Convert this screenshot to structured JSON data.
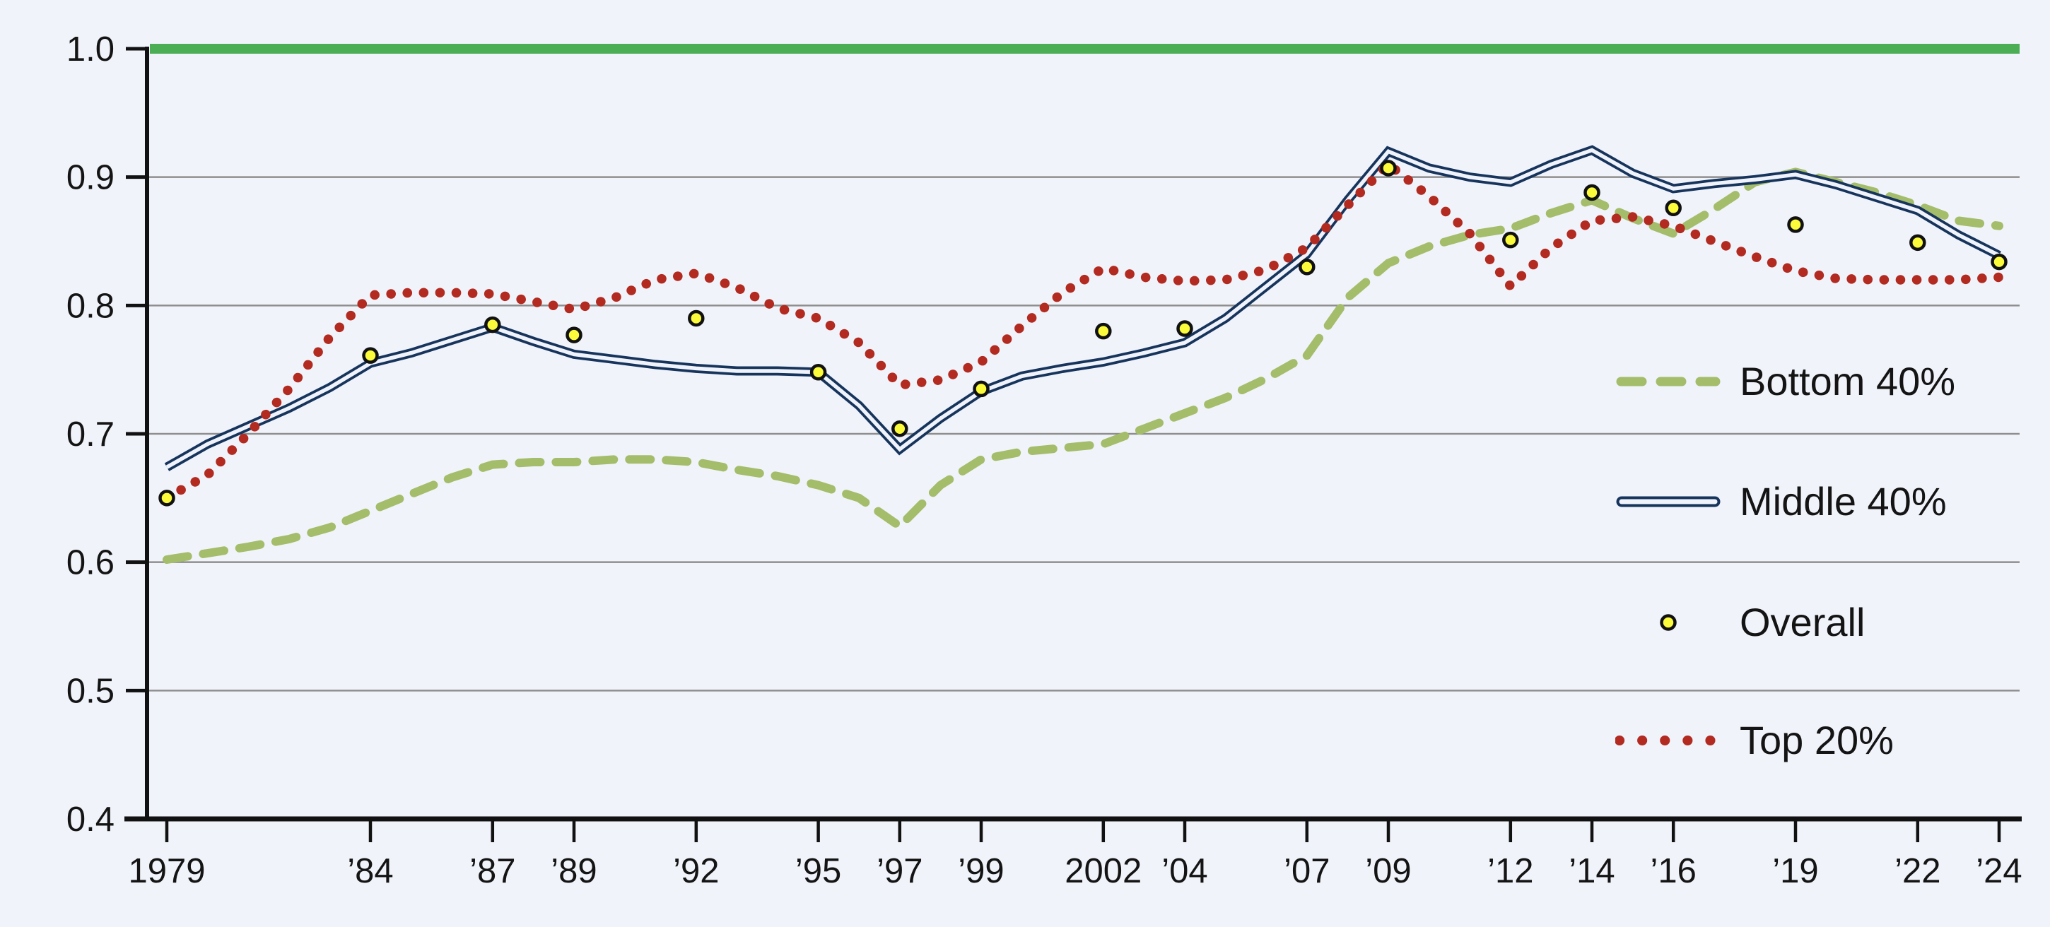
{
  "chart_data": {
    "type": "line",
    "title": "",
    "x_axis": {
      "min": 1979,
      "max": 2024,
      "tick_labels": [
        {
          "year": 1979,
          "label": "1979"
        },
        {
          "year": 1984,
          "label": "’84"
        },
        {
          "year": 1987,
          "label": "’87"
        },
        {
          "year": 1989,
          "label": "’89"
        },
        {
          "year": 1992,
          "label": "’92"
        },
        {
          "year": 1995,
          "label": "’95"
        },
        {
          "year": 1997,
          "label": "’97"
        },
        {
          "year": 1999,
          "label": "’99"
        },
        {
          "year": 2002,
          "label": "2002"
        },
        {
          "year": 2004,
          "label": "’04"
        },
        {
          "year": 2007,
          "label": "’07"
        },
        {
          "year": 2009,
          "label": "’09"
        },
        {
          "year": 2012,
          "label": "’12"
        },
        {
          "year": 2014,
          "label": "’14"
        },
        {
          "year": 2016,
          "label": "’16"
        },
        {
          "year": 2019,
          "label": "’19"
        },
        {
          "year": 2022,
          "label": "’22"
        },
        {
          "year": 2024,
          "label": "’24"
        }
      ]
    },
    "y_axis": {
      "min": 0.4,
      "max": 1.0,
      "ticks": [
        {
          "value": 1.0,
          "label": "1.0"
        },
        {
          "value": 0.9,
          "label": "0.9"
        },
        {
          "value": 0.8,
          "label": "0.8"
        },
        {
          "value": 0.7,
          "label": "0.7"
        },
        {
          "value": 0.6,
          "label": "0.6"
        },
        {
          "value": 0.5,
          "label": "0.5"
        },
        {
          "value": 0.4,
          "label": "0.4"
        }
      ],
      "gridlines": [
        0.5,
        0.6,
        0.7,
        0.8,
        0.9
      ],
      "grid_on": true
    },
    "reference_line": {
      "value": 1.0,
      "color": "#4bae55"
    },
    "legend": {
      "position": "right-inside",
      "items": [
        {
          "label": "Bottom 40%",
          "style": "dashed",
          "color": "#a4bd6a"
        },
        {
          "label": "Middle 40%",
          "style": "double-line",
          "color": "#16345c"
        },
        {
          "label": "Overall",
          "style": "scatter",
          "color": "#fbfb3c"
        },
        {
          "label": "Top 20%",
          "style": "dotted",
          "color": "#b22a20"
        }
      ]
    },
    "series": [
      {
        "name": "Bottom 40%",
        "style": "dashed",
        "color": "#a4bd6a",
        "points": [
          [
            1979,
            0.602
          ],
          [
            1980,
            0.607
          ],
          [
            1981,
            0.612
          ],
          [
            1982,
            0.618
          ],
          [
            1983,
            0.627
          ],
          [
            1984,
            0.64
          ],
          [
            1985,
            0.653
          ],
          [
            1986,
            0.666
          ],
          [
            1987,
            0.676
          ],
          [
            1988,
            0.678
          ],
          [
            1989,
            0.678
          ],
          [
            1990,
            0.68
          ],
          [
            1991,
            0.68
          ],
          [
            1992,
            0.678
          ],
          [
            1993,
            0.672
          ],
          [
            1994,
            0.667
          ],
          [
            1995,
            0.66
          ],
          [
            1996,
            0.65
          ],
          [
            1997,
            0.628
          ],
          [
            1998,
            0.66
          ],
          [
            1999,
            0.68
          ],
          [
            2000,
            0.686
          ],
          [
            2001,
            0.689
          ],
          [
            2002,
            0.692
          ],
          [
            2003,
            0.704
          ],
          [
            2004,
            0.716
          ],
          [
            2005,
            0.728
          ],
          [
            2006,
            0.743
          ],
          [
            2007,
            0.761
          ],
          [
            2008,
            0.806
          ],
          [
            2009,
            0.833
          ],
          [
            2010,
            0.846
          ],
          [
            2011,
            0.855
          ],
          [
            2012,
            0.86
          ],
          [
            2013,
            0.872
          ],
          [
            2014,
            0.882
          ],
          [
            2015,
            0.868
          ],
          [
            2016,
            0.856
          ],
          [
            2017,
            0.875
          ],
          [
            2018,
            0.896
          ],
          [
            2019,
            0.904
          ],
          [
            2020,
            0.896
          ],
          [
            2021,
            0.888
          ],
          [
            2022,
            0.878
          ],
          [
            2023,
            0.866
          ],
          [
            2024,
            0.862
          ]
        ]
      },
      {
        "name": "Middle 40%",
        "style": "double-line",
        "color": "#16345c",
        "points": [
          [
            1979,
            0.674
          ],
          [
            1980,
            0.692
          ],
          [
            1981,
            0.706
          ],
          [
            1982,
            0.72
          ],
          [
            1983,
            0.736
          ],
          [
            1984,
            0.755
          ],
          [
            1985,
            0.763
          ],
          [
            1986,
            0.773
          ],
          [
            1987,
            0.783
          ],
          [
            1988,
            0.772
          ],
          [
            1989,
            0.762
          ],
          [
            1990,
            0.758
          ],
          [
            1991,
            0.754
          ],
          [
            1992,
            0.751
          ],
          [
            1993,
            0.749
          ],
          [
            1994,
            0.749
          ],
          [
            1995,
            0.748
          ],
          [
            1996,
            0.722
          ],
          [
            1997,
            0.688
          ],
          [
            1998,
            0.712
          ],
          [
            1999,
            0.733
          ],
          [
            2000,
            0.745
          ],
          [
            2001,
            0.751
          ],
          [
            2002,
            0.756
          ],
          [
            2003,
            0.763
          ],
          [
            2004,
            0.771
          ],
          [
            2005,
            0.79
          ],
          [
            2006,
            0.815
          ],
          [
            2007,
            0.84
          ],
          [
            2008,
            0.882
          ],
          [
            2009,
            0.92
          ],
          [
            2010,
            0.907
          ],
          [
            2011,
            0.9
          ],
          [
            2012,
            0.896
          ],
          [
            2013,
            0.91
          ],
          [
            2014,
            0.921
          ],
          [
            2015,
            0.903
          ],
          [
            2016,
            0.891
          ],
          [
            2017,
            0.895
          ],
          [
            2018,
            0.898
          ],
          [
            2019,
            0.902
          ],
          [
            2020,
            0.894
          ],
          [
            2021,
            0.884
          ],
          [
            2022,
            0.874
          ],
          [
            2023,
            0.855
          ],
          [
            2024,
            0.839
          ]
        ]
      },
      {
        "name": "Top 20%",
        "style": "dotted",
        "color": "#b22a20",
        "points": [
          [
            1979,
            0.65
          ],
          [
            1980,
            0.668
          ],
          [
            1981,
            0.7
          ],
          [
            1982,
            0.735
          ],
          [
            1983,
            0.775
          ],
          [
            1984,
            0.808
          ],
          [
            1985,
            0.81
          ],
          [
            1986,
            0.81
          ],
          [
            1987,
            0.809
          ],
          [
            1988,
            0.803
          ],
          [
            1989,
            0.797
          ],
          [
            1990,
            0.806
          ],
          [
            1991,
            0.82
          ],
          [
            1992,
            0.825
          ],
          [
            1993,
            0.814
          ],
          [
            1994,
            0.798
          ],
          [
            1995,
            0.79
          ],
          [
            1996,
            0.771
          ],
          [
            1997,
            0.738
          ],
          [
            1998,
            0.742
          ],
          [
            1999,
            0.756
          ],
          [
            2000,
            0.784
          ],
          [
            2001,
            0.81
          ],
          [
            2002,
            0.829
          ],
          [
            2003,
            0.822
          ],
          [
            2004,
            0.819
          ],
          [
            2005,
            0.82
          ],
          [
            2006,
            0.828
          ],
          [
            2007,
            0.845
          ],
          [
            2008,
            0.878
          ],
          [
            2009,
            0.91
          ],
          [
            2010,
            0.885
          ],
          [
            2011,
            0.856
          ],
          [
            2012,
            0.815
          ],
          [
            2013,
            0.845
          ],
          [
            2014,
            0.866
          ],
          [
            2015,
            0.869
          ],
          [
            2016,
            0.862
          ],
          [
            2017,
            0.85
          ],
          [
            2018,
            0.838
          ],
          [
            2019,
            0.827
          ],
          [
            2020,
            0.821
          ],
          [
            2021,
            0.82
          ],
          [
            2022,
            0.82
          ],
          [
            2023,
            0.82
          ],
          [
            2024,
            0.822
          ]
        ]
      },
      {
        "name": "Overall",
        "style": "scatter",
        "color": "#fbfb3c",
        "stroke": "#111111",
        "points": [
          [
            1979,
            0.65
          ],
          [
            1984,
            0.761
          ],
          [
            1987,
            0.785
          ],
          [
            1989,
            0.777
          ],
          [
            1992,
            0.79
          ],
          [
            1995,
            0.748
          ],
          [
            1997,
            0.704
          ],
          [
            1999,
            0.735
          ],
          [
            2002,
            0.78
          ],
          [
            2004,
            0.782
          ],
          [
            2007,
            0.83
          ],
          [
            2009,
            0.907
          ],
          [
            2012,
            0.851
          ],
          [
            2014,
            0.888
          ],
          [
            2016,
            0.876
          ],
          [
            2019,
            0.863
          ],
          [
            2022,
            0.849
          ],
          [
            2024,
            0.834
          ]
        ]
      }
    ]
  },
  "colors": {
    "background": "#f0f3fa",
    "gridline": "#8e8e8e",
    "axis": "#111111",
    "text": "#141414"
  }
}
